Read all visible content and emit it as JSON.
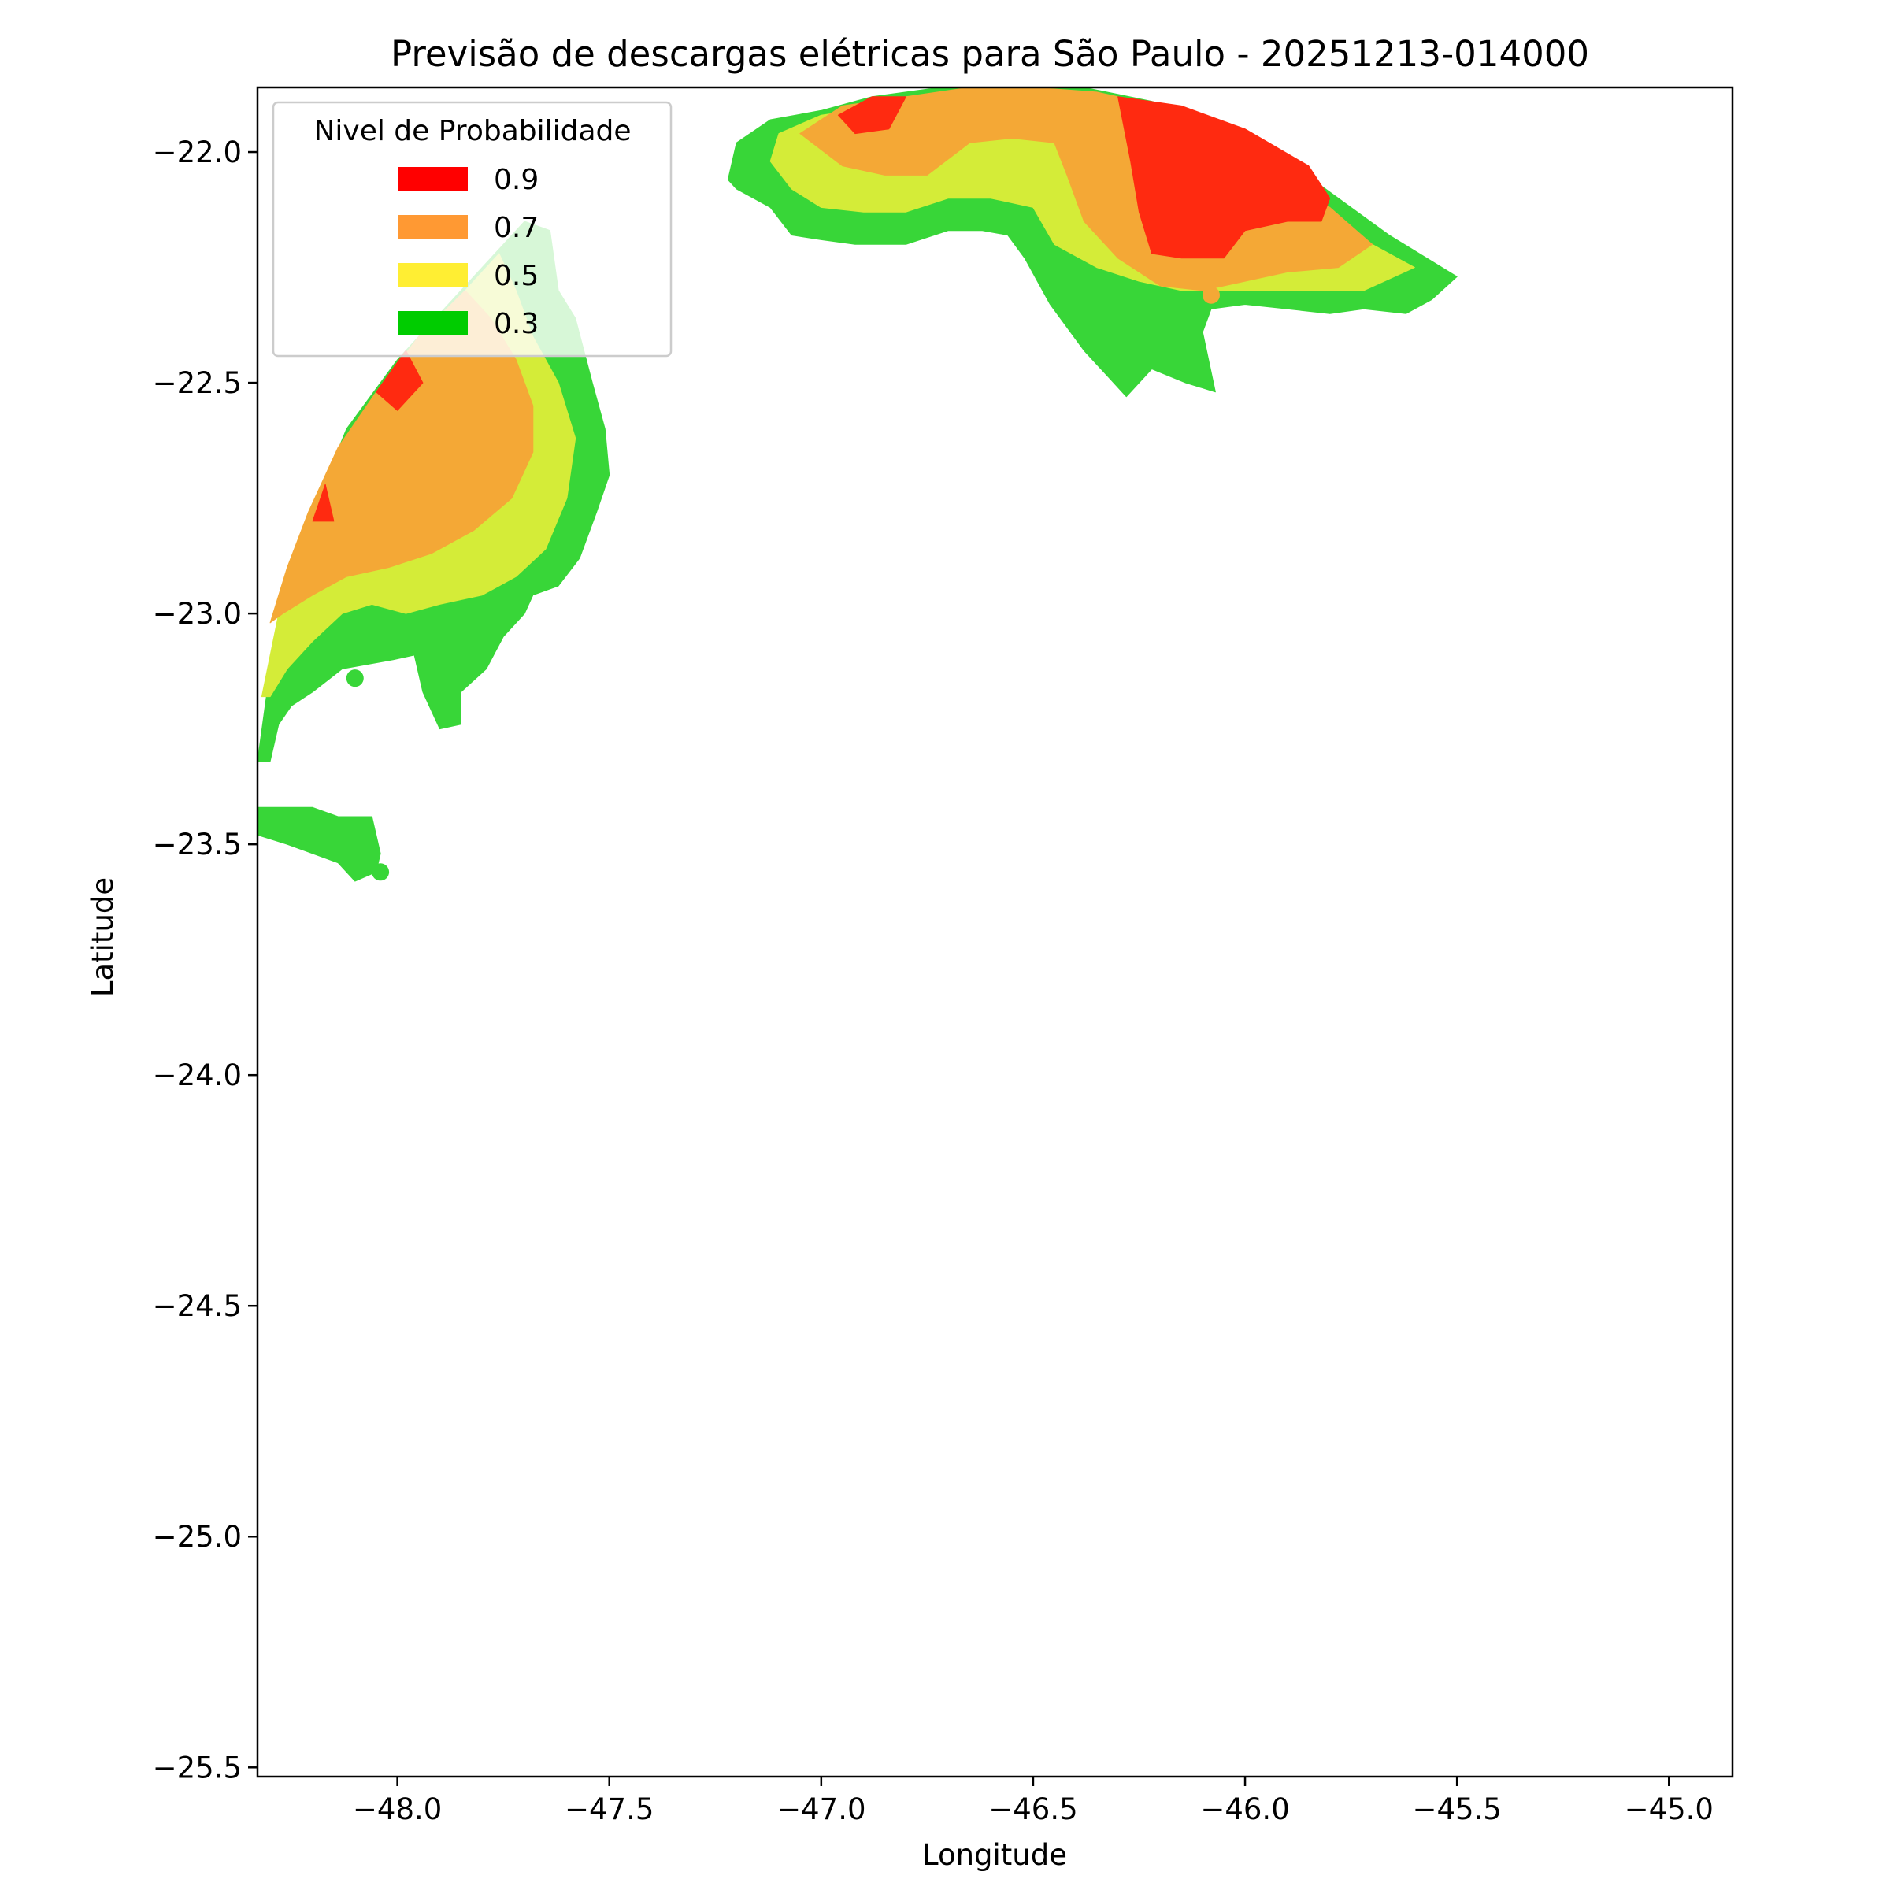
{
  "title": "Previsão de descargas elétricas para São Paulo - 20251213-014000",
  "chart_data": {
    "type": "contourf-map",
    "xlabel": "Longitude",
    "ylabel": "Latitude",
    "xlim": [
      -48.33,
      -44.85
    ],
    "ylim": [
      -25.52,
      -21.86
    ],
    "x_ticks": [
      {
        "value": -48.0,
        "label": "−48.0"
      },
      {
        "value": -47.5,
        "label": "−47.5"
      },
      {
        "value": -47.0,
        "label": "−47.0"
      },
      {
        "value": -46.5,
        "label": "−46.5"
      },
      {
        "value": -46.0,
        "label": "−46.0"
      },
      {
        "value": -45.5,
        "label": "−45.5"
      },
      {
        "value": -45.0,
        "label": "−45.0"
      }
    ],
    "y_ticks": [
      {
        "value": -22.0,
        "label": "−22.0"
      },
      {
        "value": -22.5,
        "label": "−22.5"
      },
      {
        "value": -23.0,
        "label": "−23.0"
      },
      {
        "value": -23.5,
        "label": "−23.5"
      },
      {
        "value": -24.0,
        "label": "−24.0"
      },
      {
        "value": -24.5,
        "label": "−24.5"
      },
      {
        "value": -25.0,
        "label": "−25.0"
      },
      {
        "value": -25.5,
        "label": "−25.5"
      }
    ],
    "legend": {
      "title": "Nivel de Probabilidade",
      "position": "top-left",
      "entries": [
        {
          "label": "0.9",
          "color": "#ff0000"
        },
        {
          "label": "0.7",
          "color": "#ff9933"
        },
        {
          "label": "0.5",
          "color": "#ffee33"
        },
        {
          "label": "0.3",
          "color": "#00cc00"
        }
      ]
    },
    "region_colors": {
      "0.3": "#38d638",
      "0.5": "#d4ec38",
      "0.7": "#f4a836",
      "0.9": "#ff2a10"
    },
    "regions": [
      {
        "name": "west-cell",
        "level": "0.3",
        "polygon": [
          [
            -48.33,
            -23.32
          ],
          [
            -48.3,
            -23.12
          ],
          [
            -48.26,
            -22.95
          ],
          [
            -48.2,
            -22.78
          ],
          [
            -48.12,
            -22.6
          ],
          [
            -48.0,
            -22.45
          ],
          [
            -47.85,
            -22.3
          ],
          [
            -47.7,
            -22.15
          ],
          [
            -47.64,
            -22.17
          ],
          [
            -47.62,
            -22.3
          ],
          [
            -47.58,
            -22.36
          ],
          [
            -47.54,
            -22.5
          ],
          [
            -47.51,
            -22.6
          ],
          [
            -47.5,
            -22.7
          ],
          [
            -47.53,
            -22.78
          ],
          [
            -47.57,
            -22.88
          ],
          [
            -47.62,
            -22.94
          ],
          [
            -47.68,
            -22.96
          ],
          [
            -47.7,
            -23.0
          ],
          [
            -47.75,
            -23.05
          ],
          [
            -47.79,
            -23.12
          ],
          [
            -47.85,
            -23.17
          ],
          [
            -47.85,
            -23.24
          ],
          [
            -47.9,
            -23.25
          ],
          [
            -47.94,
            -23.17
          ],
          [
            -47.96,
            -23.09
          ],
          [
            -48.01,
            -23.1
          ],
          [
            -48.13,
            -23.12
          ],
          [
            -48.2,
            -23.17
          ],
          [
            -48.25,
            -23.2
          ],
          [
            -48.28,
            -23.24
          ],
          [
            -48.3,
            -23.32
          ]
        ]
      },
      {
        "name": "west-cell",
        "level": "0.5",
        "polygon": [
          [
            -48.32,
            -23.18
          ],
          [
            -48.28,
            -23.0
          ],
          [
            -48.23,
            -22.85
          ],
          [
            -48.17,
            -22.72
          ],
          [
            -48.08,
            -22.58
          ],
          [
            -47.98,
            -22.45
          ],
          [
            -47.86,
            -22.32
          ],
          [
            -47.76,
            -22.22
          ],
          [
            -47.72,
            -22.3
          ],
          [
            -47.68,
            -22.4
          ],
          [
            -47.62,
            -22.5
          ],
          [
            -47.58,
            -22.62
          ],
          [
            -47.6,
            -22.75
          ],
          [
            -47.65,
            -22.86
          ],
          [
            -47.72,
            -22.92
          ],
          [
            -47.8,
            -22.96
          ],
          [
            -47.9,
            -22.98
          ],
          [
            -47.98,
            -23.0
          ],
          [
            -48.06,
            -22.98
          ],
          [
            -48.13,
            -23.0
          ],
          [
            -48.2,
            -23.06
          ],
          [
            -48.26,
            -23.12
          ],
          [
            -48.3,
            -23.18
          ]
        ]
      },
      {
        "name": "west-cell",
        "level": "0.7",
        "polygon": [
          [
            -48.3,
            -23.02
          ],
          [
            -48.26,
            -22.9
          ],
          [
            -48.21,
            -22.78
          ],
          [
            -48.14,
            -22.64
          ],
          [
            -48.05,
            -22.52
          ],
          [
            -47.95,
            -22.4
          ],
          [
            -47.84,
            -22.3
          ],
          [
            -47.78,
            -22.36
          ],
          [
            -47.72,
            -22.45
          ],
          [
            -47.68,
            -22.55
          ],
          [
            -47.68,
            -22.65
          ],
          [
            -47.73,
            -22.75
          ],
          [
            -47.82,
            -22.82
          ],
          [
            -47.92,
            -22.87
          ],
          [
            -48.02,
            -22.9
          ],
          [
            -48.12,
            -22.92
          ],
          [
            -48.2,
            -22.96
          ],
          [
            -48.27,
            -23.0
          ]
        ]
      },
      {
        "name": "west-cell",
        "level": "0.9",
        "polygon": [
          [
            -48.2,
            -22.8
          ],
          [
            -48.17,
            -22.72
          ],
          [
            -48.15,
            -22.8
          ]
        ]
      },
      {
        "name": "west-cell",
        "level": "0.9",
        "polygon": [
          [
            -48.05,
            -22.52
          ],
          [
            -47.98,
            -22.43
          ],
          [
            -47.94,
            -22.5
          ],
          [
            -48.0,
            -22.56
          ]
        ]
      },
      {
        "name": "west-cell-2",
        "level": "0.3",
        "polygon": [
          [
            -48.33,
            -23.42
          ],
          [
            -48.2,
            -23.42
          ],
          [
            -48.14,
            -23.44
          ],
          [
            -48.06,
            -23.44
          ],
          [
            -48.04,
            -23.52
          ],
          [
            -48.05,
            -23.56
          ],
          [
            -48.1,
            -23.58
          ],
          [
            -48.14,
            -23.54
          ],
          [
            -48.2,
            -23.52
          ],
          [
            -48.26,
            -23.5
          ],
          [
            -48.33,
            -23.48
          ]
        ]
      },
      {
        "name": "north-cell",
        "level": "0.3",
        "polygon": [
          [
            -47.22,
            -22.06
          ],
          [
            -47.2,
            -21.98
          ],
          [
            -47.12,
            -21.93
          ],
          [
            -47.0,
            -21.91
          ],
          [
            -46.88,
            -21.88
          ],
          [
            -46.72,
            -21.86
          ],
          [
            -46.55,
            -21.86
          ],
          [
            -46.38,
            -21.86
          ],
          [
            -46.22,
            -21.89
          ],
          [
            -46.05,
            -21.94
          ],
          [
            -45.9,
            -22.02
          ],
          [
            -45.78,
            -22.1
          ],
          [
            -45.66,
            -22.18
          ],
          [
            -45.5,
            -22.27
          ],
          [
            -45.56,
            -22.32
          ],
          [
            -45.62,
            -22.35
          ],
          [
            -45.72,
            -22.34
          ],
          [
            -45.8,
            -22.35
          ],
          [
            -45.9,
            -22.34
          ],
          [
            -46.0,
            -22.33
          ],
          [
            -46.08,
            -22.34
          ],
          [
            -46.1,
            -22.39
          ],
          [
            -46.07,
            -22.52
          ],
          [
            -46.14,
            -22.5
          ],
          [
            -46.22,
            -22.47
          ],
          [
            -46.28,
            -22.53
          ],
          [
            -46.32,
            -22.49
          ],
          [
            -46.38,
            -22.43
          ],
          [
            -46.46,
            -22.33
          ],
          [
            -46.52,
            -22.23
          ],
          [
            -46.56,
            -22.18
          ],
          [
            -46.62,
            -22.17
          ],
          [
            -46.7,
            -22.17
          ],
          [
            -46.8,
            -22.2
          ],
          [
            -46.92,
            -22.2
          ],
          [
            -47.0,
            -22.19
          ],
          [
            -47.07,
            -22.18
          ],
          [
            -47.12,
            -22.12
          ],
          [
            -47.2,
            -22.08
          ]
        ]
      },
      {
        "name": "north-cell",
        "level": "0.5",
        "polygon": [
          [
            -47.12,
            -22.02
          ],
          [
            -47.1,
            -21.96
          ],
          [
            -47.0,
            -21.92
          ],
          [
            -46.85,
            -21.9
          ],
          [
            -46.7,
            -21.87
          ],
          [
            -46.55,
            -21.87
          ],
          [
            -46.4,
            -21.87
          ],
          [
            -46.25,
            -21.9
          ],
          [
            -46.1,
            -21.96
          ],
          [
            -45.95,
            -22.03
          ],
          [
            -45.82,
            -22.11
          ],
          [
            -45.7,
            -22.2
          ],
          [
            -45.6,
            -22.25
          ],
          [
            -45.72,
            -22.3
          ],
          [
            -45.85,
            -22.3
          ],
          [
            -45.95,
            -22.3
          ],
          [
            -46.05,
            -22.3
          ],
          [
            -46.15,
            -22.3
          ],
          [
            -46.25,
            -22.28
          ],
          [
            -46.35,
            -22.25
          ],
          [
            -46.45,
            -22.2
          ],
          [
            -46.5,
            -22.12
          ],
          [
            -46.6,
            -22.1
          ],
          [
            -46.7,
            -22.1
          ],
          [
            -46.8,
            -22.13
          ],
          [
            -46.9,
            -22.13
          ],
          [
            -47.0,
            -22.12
          ],
          [
            -47.07,
            -22.08
          ]
        ]
      },
      {
        "name": "north-cell",
        "level": "0.7",
        "polygon": [
          [
            -47.05,
            -21.96
          ],
          [
            -46.95,
            -21.9
          ],
          [
            -46.8,
            -21.88
          ],
          [
            -46.65,
            -21.86
          ],
          [
            -46.5,
            -21.86
          ],
          [
            -46.35,
            -21.87
          ],
          [
            -46.2,
            -21.9
          ],
          [
            -46.05,
            -21.96
          ],
          [
            -45.92,
            -22.04
          ],
          [
            -45.8,
            -22.12
          ],
          [
            -45.7,
            -22.2
          ],
          [
            -45.78,
            -22.25
          ],
          [
            -45.9,
            -22.26
          ],
          [
            -46.0,
            -22.28
          ],
          [
            -46.1,
            -22.3
          ],
          [
            -46.2,
            -22.29
          ],
          [
            -46.3,
            -22.23
          ],
          [
            -46.38,
            -22.15
          ],
          [
            -46.42,
            -22.05
          ],
          [
            -46.45,
            -21.98
          ],
          [
            -46.55,
            -21.97
          ],
          [
            -46.65,
            -21.98
          ],
          [
            -46.75,
            -22.05
          ],
          [
            -46.85,
            -22.05
          ],
          [
            -46.95,
            -22.03
          ]
        ]
      },
      {
        "name": "north-cell",
        "level": "0.9",
        "polygon": [
          [
            -46.3,
            -21.88
          ],
          [
            -46.15,
            -21.9
          ],
          [
            -46.0,
            -21.95
          ],
          [
            -45.85,
            -22.03
          ],
          [
            -45.8,
            -22.1
          ],
          [
            -45.82,
            -22.15
          ],
          [
            -45.9,
            -22.15
          ],
          [
            -46.0,
            -22.17
          ],
          [
            -46.05,
            -22.23
          ],
          [
            -46.15,
            -22.23
          ],
          [
            -46.22,
            -22.22
          ],
          [
            -46.25,
            -22.13
          ],
          [
            -46.27,
            -22.02
          ]
        ]
      },
      {
        "name": "north-cell",
        "level": "0.9",
        "polygon": [
          [
            -46.96,
            -21.92
          ],
          [
            -46.88,
            -21.88
          ],
          [
            -46.8,
            -21.88
          ],
          [
            -46.84,
            -21.95
          ],
          [
            -46.92,
            -21.96
          ]
        ]
      }
    ],
    "markers": [
      {
        "lon": -48.1,
        "lat": -23.14,
        "level": "0.3"
      },
      {
        "lon": -48.04,
        "lat": -23.56,
        "level": "0.3"
      },
      {
        "lon": -46.08,
        "lat": -22.31,
        "level": "0.7"
      }
    ]
  }
}
